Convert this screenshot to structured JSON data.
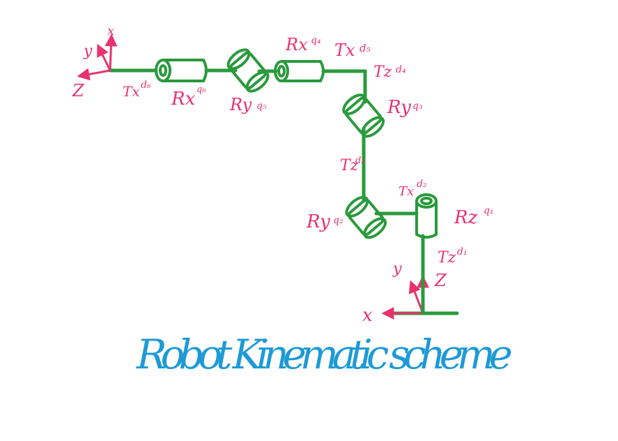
{
  "title": "Robot Kinematic scheme",
  "colors": {
    "link": "#2a9a3c",
    "label": "#e8336d",
    "title": "#1e9ad6"
  },
  "base_frame": {
    "x": "x",
    "y": "y",
    "z": "Z"
  },
  "tool_frame": {
    "x": "x",
    "y": "y",
    "z": "Z"
  },
  "labels": {
    "tz_d1": {
      "main": "Tz",
      "sub": "d₁"
    },
    "rz_q1": {
      "main": "Rz",
      "sub": "q₁"
    },
    "tx_d2": {
      "main": "Tx",
      "sub": "d₂"
    },
    "ry_q2": {
      "main": "Ry",
      "sub": "q₂"
    },
    "tz_d3": {
      "main": "Tz",
      "sub": "d₃"
    },
    "ry_q3": {
      "main": "Ry",
      "sub": "q₃"
    },
    "tz_d4": {
      "main": "Tz",
      "sub": "d₄"
    },
    "tx_d5": {
      "main": "Tx",
      "sub": "d₅"
    },
    "rx_q4": {
      "main": "Rx",
      "sub": "q₄"
    },
    "ry_q5": {
      "main": "Ry",
      "sub": "q₅"
    },
    "rx_q6": {
      "main": "Rx",
      "sub": "q₆"
    },
    "tx_d6": {
      "main": "Tx",
      "sub": "d₆"
    }
  }
}
